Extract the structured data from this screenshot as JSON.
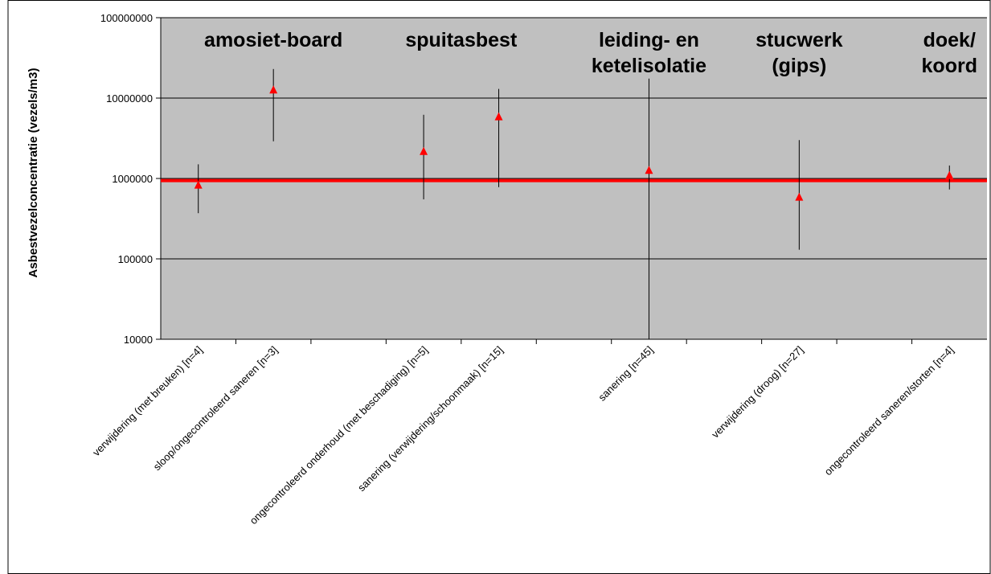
{
  "chart_data": {
    "type": "scatter",
    "ylabel": "Asbestvezelconcentratie (vezels/m3)",
    "xlabel": "",
    "yscale": "log",
    "ylim": [
      10000,
      100000000
    ],
    "yticks": [
      "100000000",
      "10000000",
      "1000000",
      "100000",
      "10000"
    ],
    "grid": true,
    "legend": "none",
    "plot_background": "#c0c0c0",
    "marker_color": "#ff0000",
    "reference_color": "#ff0000",
    "reference_value": 940000,
    "groups": [
      {
        "label": [
          "amosiet-board"
        ],
        "position": 1.5
      },
      {
        "label": [
          "spuitasbest"
        ],
        "position": 4.0
      },
      {
        "label": [
          "leiding- en",
          "ketelisolatie"
        ],
        "position": 6.5
      },
      {
        "label": [
          "stucwerk",
          "(gips)"
        ],
        "position": 8.5
      },
      {
        "label": [
          "doek/",
          "koord"
        ],
        "position": 10.5
      }
    ],
    "categories": [
      "verwijdering (met breuken) [n=4]",
      "sloop/ongecontroleerd saneren [n=3]",
      "",
      "ongecontroleerd onderhoud (met beschadiging) [n=5]",
      "sanering (verwijdering/schoonmaak) [n=15]",
      "",
      "sanering [n=45]",
      "",
      "verwijdering (droog) [n=27]",
      "",
      "ongecontroleerd saneren/storten [n=4]"
    ],
    "points": [
      {
        "category": 0,
        "value": 820000,
        "low": 370000,
        "high": 1500000
      },
      {
        "category": 1,
        "value": 12500000,
        "low": 2900000,
        "high": 23000000
      },
      {
        "category": 3,
        "value": 2150000,
        "low": 550000,
        "high": 6200000
      },
      {
        "category": 4,
        "value": 5800000,
        "low": 780000,
        "high": 13000000
      },
      {
        "category": 6,
        "value": 1250000,
        "low": 10000,
        "high": 17500000
      },
      {
        "category": 8,
        "value": 580000,
        "low": 130000,
        "high": 3000000
      },
      {
        "category": 10,
        "value": 1080000,
        "low": 730000,
        "high": 1450000
      }
    ]
  }
}
